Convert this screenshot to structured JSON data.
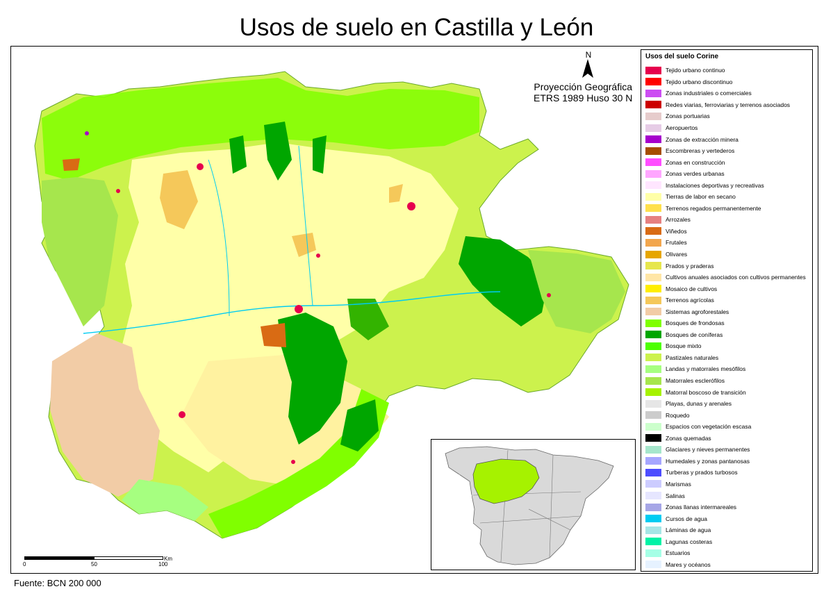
{
  "title": "Usos de suelo en Castilla y León",
  "north_label": "N",
  "projection": {
    "line1": "Proyección Geográfica",
    "line2": "ETRS 1989 Huso 30 N"
  },
  "legend": {
    "title": "Usos del suelo Corine",
    "items": [
      {
        "label": "Tejido urbano continuo",
        "color": "#e6004d"
      },
      {
        "label": "Tejido urbano discontinuo",
        "color": "#ff0000"
      },
      {
        "label": "Zonas industriales o comerciales",
        "color": "#cc4df2"
      },
      {
        "label": "Redes viarias, ferroviarias y terrenos asociados",
        "color": "#cc0000"
      },
      {
        "label": "Zonas portuarias",
        "color": "#e6cccc"
      },
      {
        "label": "Aeropuertos",
        "color": "#e6cce6"
      },
      {
        "label": "Zonas de extracción minera",
        "color": "#a600cc"
      },
      {
        "label": "Escombreras y vertederos",
        "color": "#a64d00"
      },
      {
        "label": "Zonas en construcción",
        "color": "#ff4dff"
      },
      {
        "label": "Zonas verdes urbanas",
        "color": "#ffa6ff"
      },
      {
        "label": "Instalaciones deportivas y recreativas",
        "color": "#ffe6ff"
      },
      {
        "label": "Tierras de labor en secano",
        "color": "#ffffa8"
      },
      {
        "label": "Terrenos regados permanentemente",
        "color": "#ffe04d"
      },
      {
        "label": "Arrozales",
        "color": "#e68080"
      },
      {
        "label": "Viñedos",
        "color": "#d96b14"
      },
      {
        "label": "Frutales",
        "color": "#f2a64d"
      },
      {
        "label": "Olivares",
        "color": "#e6a600"
      },
      {
        "label": "Prados y praderas",
        "color": "#e6e64d"
      },
      {
        "label": "Cultivos anuales asociados con cultivos permanentes",
        "color": "#ffe6a6"
      },
      {
        "label": "Mosaico de cultivos",
        "color": "#ffee00"
      },
      {
        "label": "Terrenos agrícolas",
        "color": "#f5c85a"
      },
      {
        "label": "Sistemas agroforestales",
        "color": "#f2cca6"
      },
      {
        "label": "Bosques de frondosas",
        "color": "#80ff00"
      },
      {
        "label": "Bosques de coníferas",
        "color": "#00a600"
      },
      {
        "label": "Bosque mixto",
        "color": "#4dff00"
      },
      {
        "label": "Pastizales naturales",
        "color": "#ccf24d"
      },
      {
        "label": "Landas y matorrales mesófilos",
        "color": "#a6ff80"
      },
      {
        "label": "Matorrales esclerófilos",
        "color": "#a6e64d"
      },
      {
        "label": "Matorral boscoso de transición",
        "color": "#a6f200"
      },
      {
        "label": "Playas, dunas y arenales",
        "color": "#e6e6e6"
      },
      {
        "label": "Roquedo",
        "color": "#cccccc"
      },
      {
        "label": "Espacios con vegetación escasa",
        "color": "#ccffcc"
      },
      {
        "label": "Zonas quemadas",
        "color": "#000000"
      },
      {
        "label": "Glaciares y nieves permanentes",
        "color": "#a6e6cc"
      },
      {
        "label": "Humedales y zonas pantanosas",
        "color": "#a6a6ff"
      },
      {
        "label": "Turberas y prados turbosos",
        "color": "#4d4dff"
      },
      {
        "label": "Marismas",
        "color": "#ccccff"
      },
      {
        "label": "Salinas",
        "color": "#e6e6ff"
      },
      {
        "label": "Zonas llanas intermareales",
        "color": "#a6a6e6"
      },
      {
        "label": "Cursos de agua",
        "color": "#00ccf2"
      },
      {
        "label": "Láminas de agua",
        "color": "#a6e6e6"
      },
      {
        "label": "Lagunas costeras",
        "color": "#00f2a6"
      },
      {
        "label": "Estuarios",
        "color": "#a6ffe6"
      },
      {
        "label": "Mares y océanos",
        "color": "#e6f2ff"
      }
    ]
  },
  "scale": {
    "ticks": [
      "0",
      "50",
      "100"
    ],
    "unit": "Km"
  },
  "source": "Fuente: BCN 200 000",
  "colors": {
    "farmland": "#ffffa8",
    "forest_light": "#80ff00",
    "conifer": "#00a600",
    "pasture": "#ccf24d",
    "shrub": "#a6e64d",
    "agroforest": "#f2cca6",
    "urban": "#e6004d",
    "inset_region": "#a6f200",
    "inset_spain": "#d9d9d9"
  }
}
